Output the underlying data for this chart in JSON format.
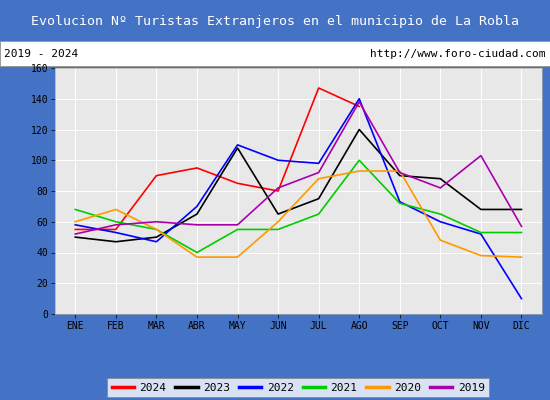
{
  "title": "Evolucion Nº Turistas Extranjeros en el municipio de La Robla",
  "subtitle_left": "2019 - 2024",
  "subtitle_right": "http://www.foro-ciudad.com",
  "title_bg_color": "#4472c4",
  "title_text_color": "#ffffff",
  "subtitle_bg_color": "#ffffff",
  "subtitle_border_color": "#999999",
  "plot_bg_color": "#e8e8e8",
  "grid_color": "#ffffff",
  "months": [
    "ENE",
    "FEB",
    "MAR",
    "ABR",
    "MAY",
    "JUN",
    "JUL",
    "AGO",
    "SEP",
    "OCT",
    "NOV",
    "DIC"
  ],
  "ylim": [
    0,
    160
  ],
  "yticks": [
    0,
    20,
    40,
    60,
    80,
    100,
    120,
    140,
    160
  ],
  "series": {
    "2024": {
      "values": [
        55,
        55,
        90,
        95,
        85,
        80,
        147,
        135,
        null,
        null,
        null,
        null
      ],
      "color": "#ff0000",
      "linewidth": 1.2
    },
    "2023": {
      "values": [
        50,
        47,
        50,
        65,
        108,
        65,
        75,
        120,
        90,
        88,
        68,
        68
      ],
      "color": "#000000",
      "linewidth": 1.2
    },
    "2022": {
      "values": [
        58,
        53,
        47,
        70,
        110,
        100,
        98,
        140,
        73,
        60,
        52,
        10
      ],
      "color": "#0000ff",
      "linewidth": 1.2
    },
    "2021": {
      "values": [
        68,
        60,
        55,
        40,
        55,
        55,
        65,
        100,
        72,
        65,
        53,
        53
      ],
      "color": "#00cc00",
      "linewidth": 1.2
    },
    "2020": {
      "values": [
        60,
        68,
        55,
        37,
        37,
        60,
        88,
        93,
        93,
        48,
        38,
        37
      ],
      "color": "#ff9900",
      "linewidth": 1.2
    },
    "2019": {
      "values": [
        52,
        58,
        60,
        58,
        58,
        82,
        92,
        138,
        92,
        82,
        103,
        57
      ],
      "color": "#aa00aa",
      "linewidth": 1.2
    }
  },
  "legend_order": [
    "2024",
    "2023",
    "2022",
    "2021",
    "2020",
    "2019"
  ],
  "tick_fontsize": 7,
  "legend_fontsize": 8
}
